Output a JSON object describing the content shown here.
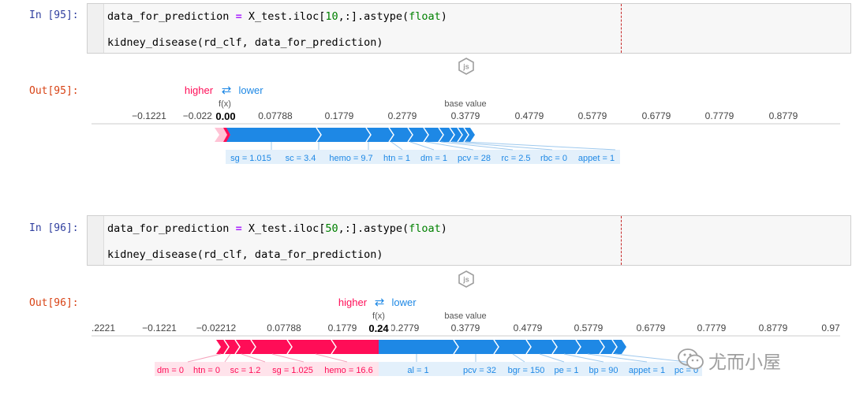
{
  "cells": [
    {
      "in_prompt": "In [95]:",
      "out_prompt": "Out[95]:",
      "code": {
        "line1": {
          "var": "data_for_prediction",
          "op": "=",
          "obj": "X_test.iloc[",
          "num": "10",
          "rest": ",:].astype(",
          "builtin": "float",
          "close": ")"
        },
        "line2": "kidney_disease(rd_clf, data_for_prediction)"
      },
      "force_plot": {
        "higher_label": "higher",
        "lower_label": "lower",
        "arrows_glyph": "⇄",
        "fx_label": "f(x)",
        "fx_value": "0.00",
        "base_value_label": "base value",
        "ticks": [
          "−0.1221",
          "−0.02212",
          "0.07788",
          "0.1779",
          "0.2779",
          "0.3779",
          "0.4779",
          "0.5779",
          "0.6779",
          "0.7779",
          "0.8779"
        ],
        "higher_features": [],
        "lower_features": [
          "sg = 1.015",
          "sc = 3.4",
          "hemo = 9.7",
          "htn = 1",
          "dm = 1",
          "pcv = 28",
          "rc = 2.5",
          "rbc = 0",
          "appet = 1"
        ]
      }
    },
    {
      "in_prompt": "In [96]:",
      "out_prompt": "Out[96]:",
      "code": {
        "line1": {
          "var": "data_for_prediction",
          "op": "=",
          "obj": "X_test.iloc[",
          "num": "50",
          "rest": ",:].astype(",
          "builtin": "float",
          "close": ")"
        },
        "line2": "kidney_disease(rd_clf, data_for_prediction)"
      },
      "force_plot": {
        "higher_label": "higher",
        "lower_label": "lower",
        "arrows_glyph": "⇄",
        "fx_label": "f(x)",
        "fx_value": "0.24",
        "base_value_label": "base value",
        "ticks": [
          ".2221",
          "−0.1221",
          "−0.02212",
          "0.07788",
          "0.1779",
          "0.2779",
          "0.3779",
          "0.4779",
          "0.5779",
          "0.6779",
          "0.7779",
          "0.8779",
          "0.97"
        ],
        "higher_features": [
          "dm = 0",
          "htn = 0",
          "sc = 1.2",
          "sg = 1.025",
          "hemo = 16.6"
        ],
        "lower_features": [
          "al = 1",
          "pcv = 32",
          "bgr = 150",
          "pe = 1",
          "bp = 90",
          "appet = 1",
          "pc = 0"
        ]
      }
    }
  ],
  "js_icon_label": "js",
  "watermark": "尤而小屋",
  "colors": {
    "higher": "#ff0d57",
    "lower": "#1e88e5",
    "in_prompt": "#303f9f",
    "out_prompt": "#d84315"
  }
}
